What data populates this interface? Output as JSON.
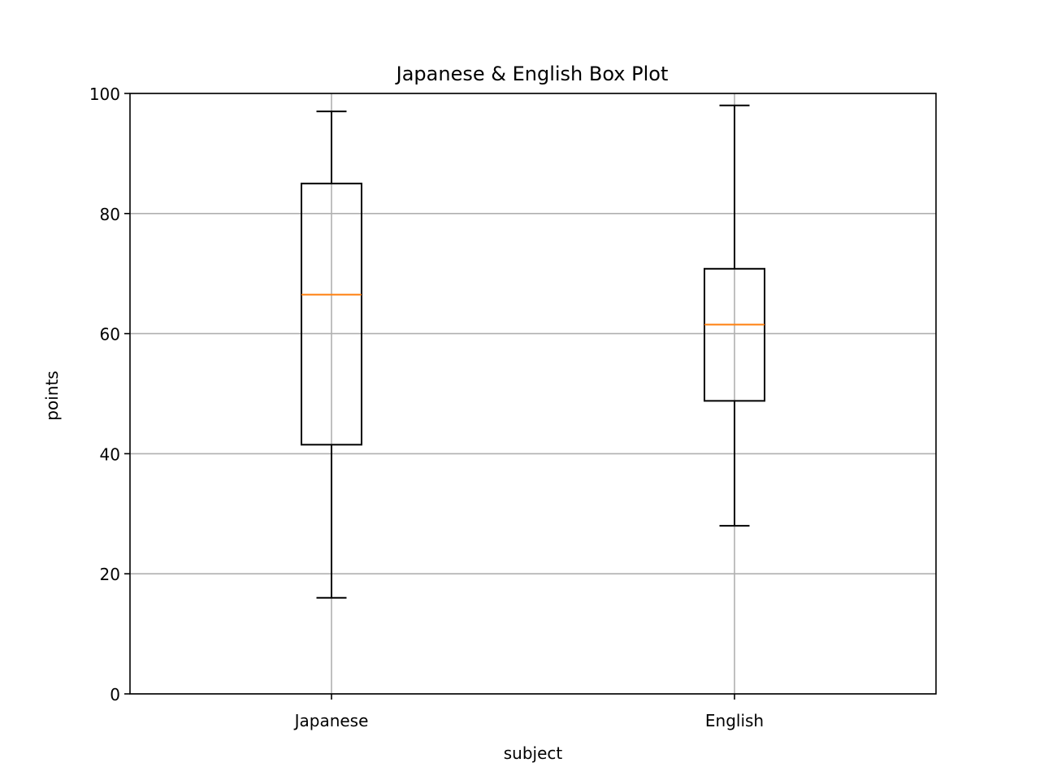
{
  "chart_data": {
    "type": "box",
    "title": "Japanese & English Box Plot",
    "xlabel": "subject",
    "ylabel": "points",
    "ylim": [
      0,
      100
    ],
    "yticks": [
      0,
      20,
      40,
      60,
      80,
      100
    ],
    "grid": true,
    "categories": [
      "Japanese",
      "English"
    ],
    "boxes": [
      {
        "name": "Japanese",
        "whisker_low": 16,
        "q1": 41.5,
        "median": 66.5,
        "q3": 85,
        "whisker_high": 97
      },
      {
        "name": "English",
        "whisker_low": 28,
        "q1": 48.8,
        "median": 61.5,
        "q3": 70.8,
        "whisker_high": 98
      }
    ],
    "colors": {
      "box": "#000000",
      "median": "#ff7f0e",
      "grid": "#b0b0b0"
    }
  }
}
